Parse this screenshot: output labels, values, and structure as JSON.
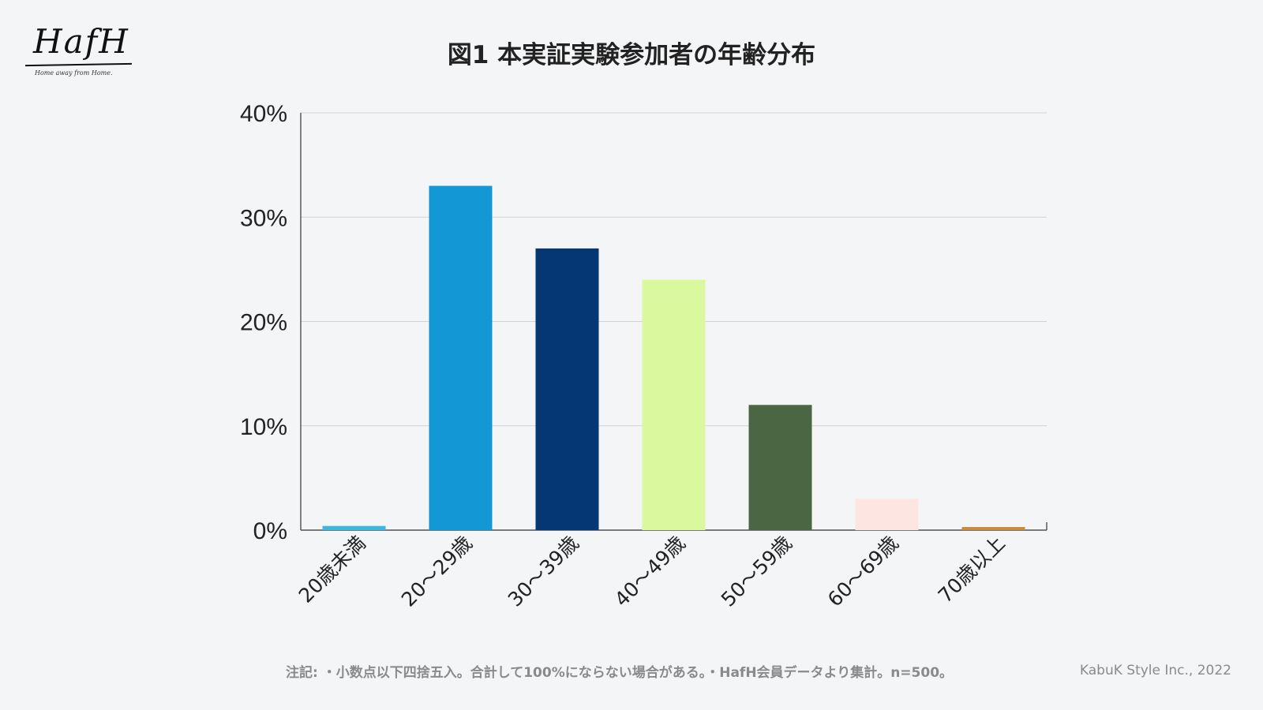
{
  "logo": {
    "word": "HafH",
    "tagline": "Home away from Home."
  },
  "title": "図1 本実証実験参加者の年齢分布",
  "note": "注記: ・小数点以下四捨五入。合計して100%にならない場合がある。・HafH会員データより集計。n=500。",
  "credit": "KabuK Style Inc., 2022",
  "chart_data": {
    "type": "bar",
    "title": "図1 本実証実験参加者の年齢分布",
    "xlabel": "",
    "ylabel": "",
    "categories": [
      "20歳未満",
      "20〜29歳",
      "30〜39歳",
      "40〜49歳",
      "50〜59歳",
      "60〜69歳",
      "70歳以上"
    ],
    "values": [
      0.4,
      33,
      27,
      24,
      12,
      3,
      0.3
    ],
    "colors": [
      "#3fb7da",
      "#1397d5",
      "#063775",
      "#daf99f",
      "#4b6642",
      "#fde6e1",
      "#c98a3d"
    ],
    "ylim": [
      0,
      40
    ],
    "yticks": [
      "0%",
      "10%",
      "20%",
      "30%",
      "40%"
    ],
    "ytick_values": [
      0,
      10,
      20,
      30,
      40
    ],
    "grid": true,
    "legend": "none"
  }
}
